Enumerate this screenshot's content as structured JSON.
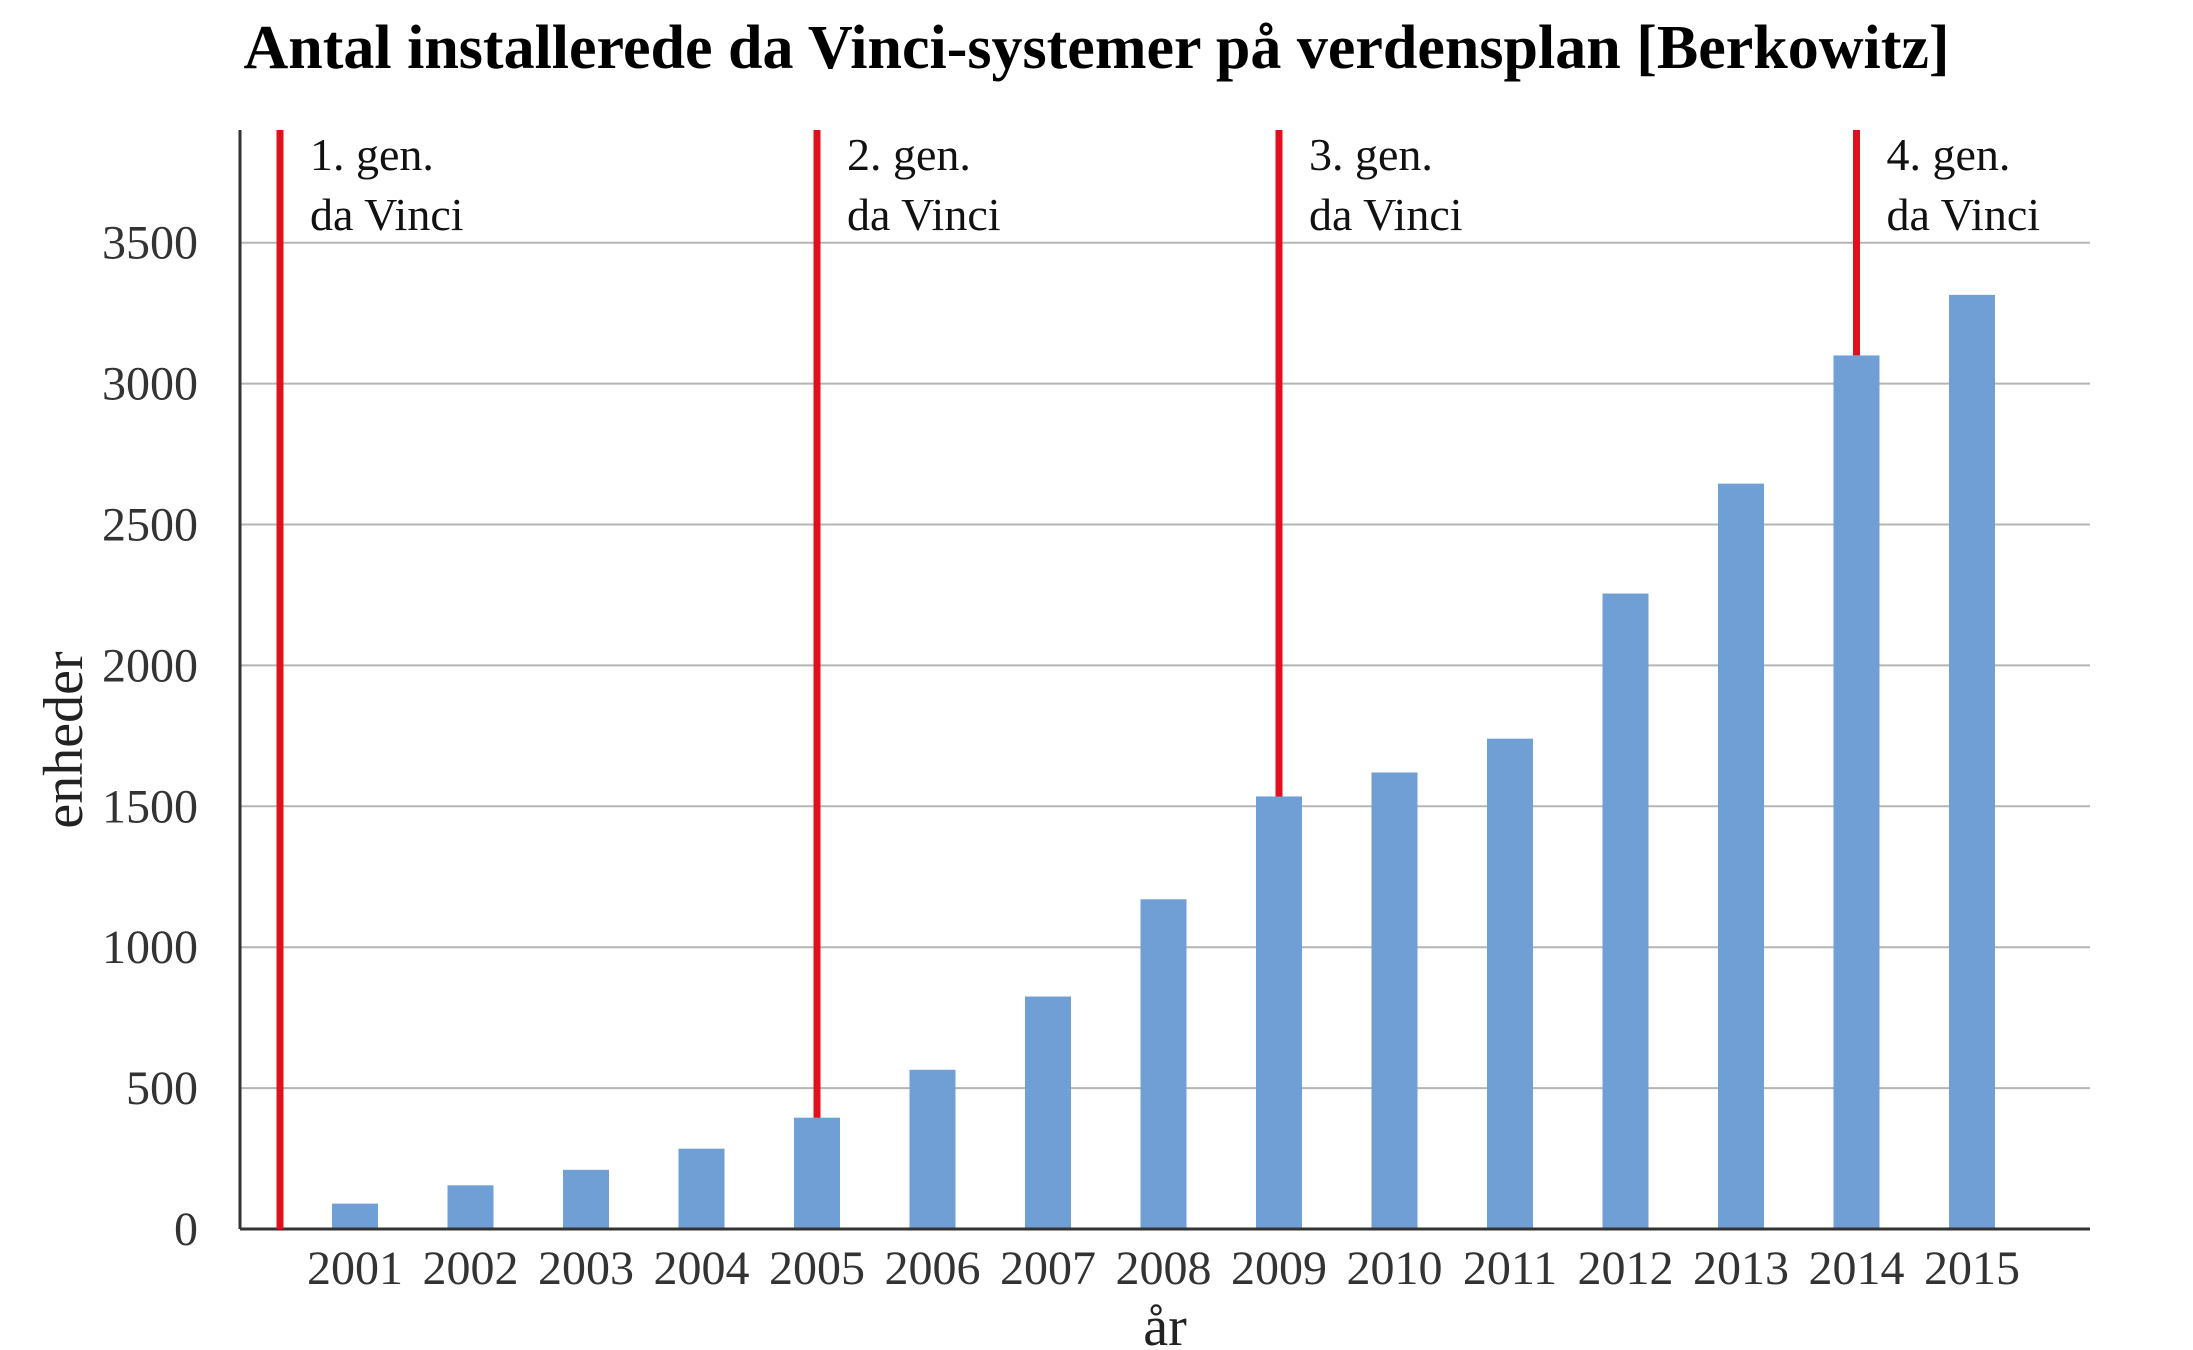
{
  "chart_data": {
    "type": "bar",
    "title": "Antal installerede da Vinci-systemer på verdensplan [Berkowitz]",
    "xlabel": "år",
    "ylabel": "enheder",
    "categories": [
      "2001",
      "2002",
      "2003",
      "2004",
      "2005",
      "2006",
      "2007",
      "2008",
      "2009",
      "2010",
      "2011",
      "2012",
      "2013",
      "2014",
      "2015"
    ],
    "values": [
      90,
      155,
      210,
      285,
      395,
      565,
      825,
      1170,
      1535,
      1620,
      1740,
      2255,
      2645,
      3100,
      3315
    ],
    "ylim": [
      0,
      3900
    ],
    "yticks": [
      0,
      500,
      1000,
      1500,
      2000,
      2500,
      3000,
      3500
    ],
    "grid": true,
    "bar_color": "#6f9fd4",
    "generation_markers": [
      {
        "line1": "1. gen.",
        "line2": "da Vinci",
        "position": "before 2001"
      },
      {
        "line1": "2. gen.",
        "line2": "da Vinci",
        "position": "2005"
      },
      {
        "line1": "3. gen.",
        "line2": "da Vinci",
        "position": "2009"
      },
      {
        "line1": "4. gen.",
        "line2": "da Vinci",
        "position": "2014"
      }
    ],
    "marker_color": "#e0101d"
  }
}
